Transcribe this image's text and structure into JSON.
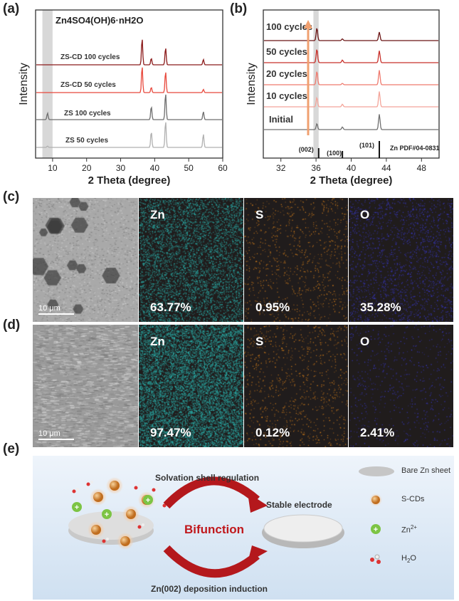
{
  "panels": {
    "a": "(a)",
    "b": "(b)",
    "c": "(c)",
    "d": "(d)",
    "e": "(e)"
  },
  "chart_data": [
    {
      "type": "line",
      "xlabel": "2 Theta (degree)",
      "ylabel": "Intensity",
      "xlim": [
        5,
        60
      ],
      "xticks": [
        10,
        20,
        30,
        40,
        50,
        60
      ],
      "annotation": "Zn4SO4(OH)6·nH2O",
      "highlight_band": [
        7,
        10
      ],
      "series": [
        {
          "name": "ZS-CD  100 cycles",
          "color": "#8b1a1a",
          "peaks": [
            [
              36.3,
              1.0
            ],
            [
              39,
              0.25
            ],
            [
              43.2,
              0.65
            ],
            [
              54.3,
              0.2
            ]
          ]
        },
        {
          "name": "ZS-CD  50 cycles",
          "color": "#e8483c",
          "peaks": [
            [
              36.3,
              1.0
            ],
            [
              39,
              0.2
            ],
            [
              43.2,
              0.8
            ],
            [
              54.3,
              0.12
            ]
          ]
        },
        {
          "name": "ZS  100 cycles",
          "color": "#6e6e6e",
          "peaks": [
            [
              8.5,
              0.25
            ],
            [
              39,
              0.5
            ],
            [
              43.2,
              1.0
            ],
            [
              54.3,
              0.3
            ]
          ]
        },
        {
          "name": "ZS  50 cycles",
          "color": "#b0b0b0",
          "peaks": [
            [
              8.5,
              0.05
            ],
            [
              39,
              0.6
            ],
            [
              43.2,
              1.0
            ],
            [
              54.3,
              0.5
            ]
          ]
        }
      ]
    },
    {
      "type": "line",
      "xlabel": "2 Theta (degree)",
      "ylabel": "Intensity",
      "xlim": [
        30,
        50
      ],
      "xticks": [
        32,
        36,
        40,
        44,
        48
      ],
      "highlight_band": [
        35.7,
        36.3
      ],
      "series": [
        {
          "name": "100 cycles",
          "color": "#6b1414",
          "peaks": [
            [
              36.1,
              0.75
            ],
            [
              39,
              0.1
            ],
            [
              43.2,
              0.5
            ]
          ]
        },
        {
          "name": "50 cycles",
          "color": "#c8302a",
          "peaks": [
            [
              36.1,
              0.8
            ],
            [
              39,
              0.15
            ],
            [
              43.2,
              0.7
            ]
          ]
        },
        {
          "name": "20 cycles",
          "color": "#ef7a6e",
          "peaks": [
            [
              36.1,
              0.8
            ],
            [
              39,
              0.08
            ],
            [
              43.2,
              0.85
            ]
          ]
        },
        {
          "name": "10 cycles",
          "color": "#f4a59a",
          "peaks": [
            [
              36.1,
              0.55
            ],
            [
              39,
              0.15
            ],
            [
              43.2,
              0.9
            ]
          ]
        },
        {
          "name": "Initial",
          "color": "#707070",
          "peaks": [
            [
              36.1,
              0.35
            ],
            [
              39,
              0.15
            ],
            [
              43.2,
              0.9
            ]
          ]
        }
      ],
      "reference": {
        "name": "Zn PDF#04-0831",
        "lines": [
          {
            "x": 36.3,
            "label": "(002)",
            "h": 0.35
          },
          {
            "x": 39,
            "label": "(100)",
            "h": 0.25
          },
          {
            "x": 43.2,
            "label": "(101)",
            "h": 0.6
          }
        ]
      }
    }
  ],
  "mapping": {
    "c": {
      "scale": "10 μm",
      "elements": [
        {
          "el": "Zn",
          "pct": "63.77%",
          "color": "#2bb5b0"
        },
        {
          "el": "S",
          "pct": "0.95%",
          "color": "#e0861c"
        },
        {
          "el": "O",
          "pct": "35.28%",
          "color": "#3a3ad0"
        }
      ]
    },
    "d": {
      "scale": "10 μm",
      "elements": [
        {
          "el": "Zn",
          "pct": "97.47%",
          "color": "#2bb5b0"
        },
        {
          "el": "S",
          "pct": "0.12%",
          "color": "#e0861c"
        },
        {
          "el": "O",
          "pct": "2.41%",
          "color": "#3a3ad0"
        }
      ]
    }
  },
  "schematic": {
    "top": "Solvation shell regulation",
    "center": "Bifunction",
    "bottom": "Zn(002) deposition induction",
    "right": "Stable electrode",
    "legend": [
      {
        "label": "Bare Zn sheet"
      },
      {
        "label": "S-CDs"
      },
      {
        "label": "Zn",
        "sup": "2+"
      },
      {
        "label": "H",
        "sub": "2",
        "tail": "O"
      }
    ]
  }
}
